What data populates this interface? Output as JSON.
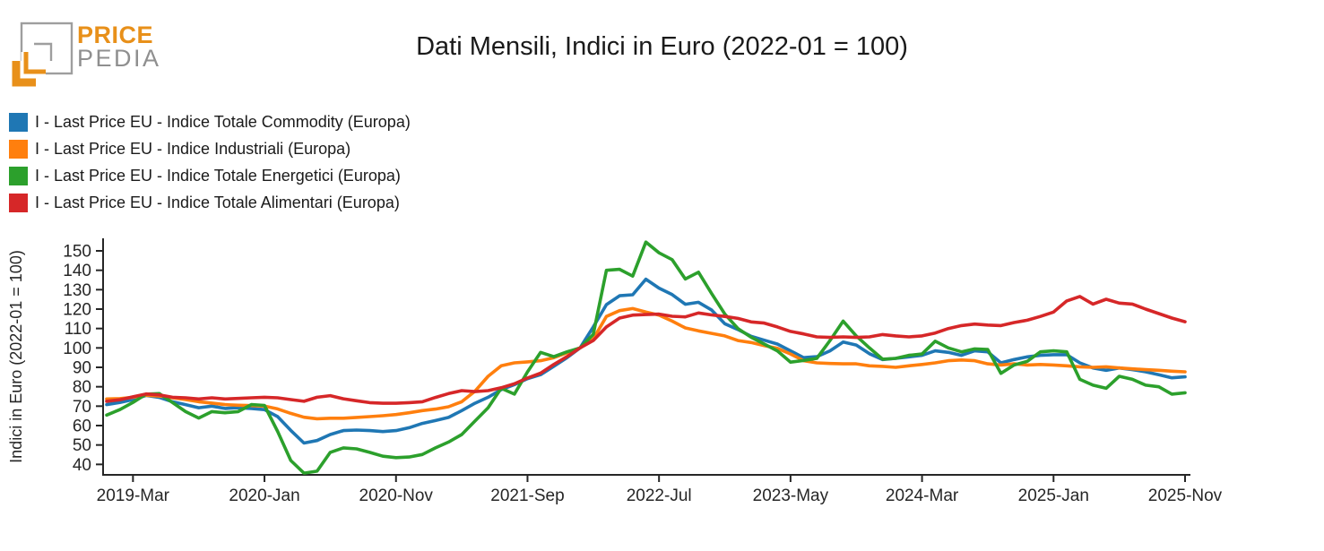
{
  "logo": {
    "brand_top": "PRICE",
    "brand_bottom": "PEDIA",
    "orange": "#e8901a",
    "gray": "#9e9e9e"
  },
  "title": "Dati Mensili, Indici in Euro (2022-01 = 100)",
  "legend": {
    "items": [
      {
        "label": "I - Last Price EU - Indice Totale Commodity (Europa)",
        "color": "#1f77b4"
      },
      {
        "label": "I - Last Price EU - Indice Industriali (Europa)",
        "color": "#ff7f0e"
      },
      {
        "label": "I - Last Price EU - Indice Totale Energetici (Europa)",
        "color": "#2ca02c"
      },
      {
        "label": "I - Last Price EU - Indice Totale Alimentari (Europa)",
        "color": "#d62728"
      }
    ]
  },
  "chart_data": {
    "type": "line",
    "title": "Dati Mensili, Indici in Euro (2022-01 = 100)",
    "xlabel": "",
    "ylabel": "Indici in Euro (2022-01 = 100)",
    "grid": false,
    "legend_position": "top-left",
    "ylim": [
      35,
      157
    ],
    "y_ticks": [
      40,
      50,
      60,
      70,
      80,
      90,
      100,
      110,
      120,
      130,
      140,
      150
    ],
    "x_tick_labels": [
      {
        "index": 2,
        "label": "2019-Mar"
      },
      {
        "index": 12,
        "label": "2020-Jan"
      },
      {
        "index": 22,
        "label": "2020-Nov"
      },
      {
        "index": 32,
        "label": "2021-Sep"
      },
      {
        "index": 42,
        "label": "2022-Jul"
      },
      {
        "index": 52,
        "label": "2023-May"
      },
      {
        "index": 62,
        "label": "2024-Mar"
      },
      {
        "index": 72,
        "label": "2025-Jan"
      },
      {
        "index": 82,
        "label": "2025-Nov"
      }
    ],
    "months": [
      "2019-01",
      "2019-02",
      "2019-03",
      "2019-04",
      "2019-05",
      "2019-06",
      "2019-07",
      "2019-08",
      "2019-09",
      "2019-10",
      "2019-11",
      "2019-12",
      "2020-01",
      "2020-02",
      "2020-03",
      "2020-04",
      "2020-05",
      "2020-06",
      "2020-07",
      "2020-08",
      "2020-09",
      "2020-10",
      "2020-11",
      "2020-12",
      "2021-01",
      "2021-02",
      "2021-03",
      "2021-04",
      "2021-05",
      "2021-06",
      "2021-07",
      "2021-08",
      "2021-09",
      "2021-10",
      "2021-11",
      "2021-12",
      "2022-01",
      "2022-02",
      "2022-03",
      "2022-04",
      "2022-05",
      "2022-06",
      "2022-07",
      "2022-08",
      "2022-09",
      "2022-10",
      "2022-11",
      "2022-12",
      "2023-01",
      "2023-02",
      "2023-03",
      "2023-04",
      "2023-05",
      "2023-06",
      "2023-07",
      "2023-08",
      "2023-09",
      "2023-10",
      "2023-11",
      "2023-12",
      "2024-01",
      "2024-02",
      "2024-03",
      "2024-04",
      "2024-05",
      "2024-06",
      "2024-07",
      "2024-08",
      "2024-09",
      "2024-10",
      "2024-11",
      "2024-12",
      "2025-01",
      "2025-02",
      "2025-03",
      "2025-04",
      "2025-05",
      "2025-06",
      "2025-07",
      "2025-08",
      "2025-09",
      "2025-10",
      "2025-11"
    ],
    "series": [
      {
        "key": "commodity",
        "name": "I - Last Price EU - Indice Totale Commodity (Europa)",
        "color": "#1f77b4",
        "values": [
          70.8,
          71.9,
          73.4,
          75.5,
          74.5,
          72.3,
          70.8,
          69.2,
          70.0,
          68.8,
          69.2,
          68.8,
          68.2,
          64.6,
          57.5,
          51.0,
          52.3,
          55.4,
          57.4,
          57.7,
          57.4,
          56.9,
          57.4,
          58.9,
          61.1,
          62.6,
          64.2,
          67.7,
          71.5,
          74.6,
          78.5,
          81.1,
          84.2,
          86.2,
          90.5,
          95.0,
          100.0,
          110.8,
          122.3,
          126.9,
          127.4,
          135.4,
          130.8,
          127.5,
          122.5,
          123.5,
          119.5,
          112.5,
          109.5,
          106.0,
          104.0,
          102.0,
          98.5,
          95.0,
          95.5,
          98.5,
          103.0,
          101.5,
          97.0,
          94.0,
          94.6,
          95.4,
          96.2,
          98.5,
          97.7,
          96.2,
          98.5,
          98.0,
          92.3,
          94.0,
          95.4,
          96.2,
          96.5,
          96.5,
          92.3,
          89.7,
          88.5,
          89.7,
          88.8,
          87.7,
          86.2,
          84.6,
          85.1
        ]
      },
      {
        "key": "industriali",
        "name": "I - Last Price EU - Indice Industriali (Europa)",
        "color": "#ff7f0e",
        "values": [
          73.7,
          73.9,
          74.6,
          75.6,
          75.2,
          74.3,
          73.4,
          72.3,
          71.6,
          70.8,
          70.5,
          70.3,
          70.0,
          68.6,
          66.3,
          64.3,
          63.5,
          63.8,
          63.8,
          64.2,
          64.6,
          65.1,
          65.7,
          66.6,
          67.7,
          68.5,
          69.7,
          72.3,
          77.7,
          85.4,
          90.8,
          92.3,
          92.8,
          93.4,
          95.0,
          97.5,
          100.0,
          104.6,
          116.2,
          119.2,
          120.3,
          118.5,
          116.9,
          113.8,
          110.3,
          108.8,
          107.5,
          106.2,
          103.8,
          102.8,
          101.2,
          99.8,
          96.9,
          93.4,
          92.3,
          92.0,
          91.8,
          91.8,
          90.8,
          90.5,
          90.0,
          90.8,
          91.5,
          92.3,
          93.4,
          93.8,
          93.4,
          91.8,
          91.2,
          91.8,
          91.2,
          91.5,
          91.2,
          90.8,
          90.3,
          90.0,
          90.3,
          89.7,
          89.2,
          88.8,
          88.5,
          88.0,
          87.7
        ]
      },
      {
        "key": "energetici",
        "name": "I - Last Price EU - Indice Totale Energetici (Europa)",
        "color": "#2ca02c",
        "values": [
          65.4,
          68.2,
          71.9,
          76.2,
          76.5,
          71.9,
          67.2,
          63.9,
          67.2,
          66.6,
          67.2,
          70.8,
          70.4,
          57.0,
          42.0,
          35.5,
          36.5,
          46.2,
          48.5,
          48.0,
          46.2,
          44.2,
          43.5,
          43.8,
          45.1,
          48.5,
          51.5,
          55.4,
          62.3,
          69.2,
          79.2,
          76.2,
          87.7,
          97.7,
          95.5,
          98.0,
          100.0,
          107.0,
          140.0,
          140.5,
          137.0,
          154.5,
          149.0,
          145.5,
          135.5,
          139.0,
          128.0,
          117.5,
          110.0,
          105.5,
          102.0,
          98.5,
          92.7,
          93.5,
          94.6,
          103.8,
          113.8,
          106.2,
          100.0,
          94.2,
          94.6,
          96.2,
          96.9,
          103.5,
          100.0,
          98.0,
          99.5,
          99.2,
          86.9,
          91.2,
          93.1,
          98.0,
          98.5,
          98.0,
          83.8,
          80.8,
          79.2,
          85.4,
          83.8,
          80.8,
          80.0,
          76.2,
          76.9
        ]
      },
      {
        "key": "alimentari",
        "name": "I - Last Price EU - Indice Totale Alimentari (Europa)",
        "color": "#d62728",
        "values": [
          72.5,
          73.3,
          74.8,
          76.3,
          75.8,
          74.6,
          74.3,
          73.7,
          74.3,
          73.7,
          74.0,
          74.3,
          74.6,
          74.3,
          73.4,
          72.5,
          74.6,
          75.4,
          73.8,
          72.8,
          71.8,
          71.5,
          71.5,
          71.8,
          72.3,
          74.5,
          76.5,
          78.0,
          77.5,
          78.0,
          79.5,
          81.5,
          84.5,
          87.0,
          91.5,
          95.5,
          100.0,
          103.8,
          110.8,
          115.4,
          116.9,
          117.2,
          117.4,
          116.3,
          116.0,
          118.0,
          117.0,
          116.2,
          115.2,
          113.4,
          112.8,
          110.8,
          108.5,
          107.2,
          105.7,
          105.4,
          105.7,
          105.4,
          105.7,
          106.9,
          106.2,
          105.7,
          106.2,
          107.7,
          110.0,
          111.5,
          112.3,
          111.8,
          111.5,
          113.1,
          114.3,
          116.2,
          118.5,
          124.2,
          126.5,
          122.6,
          125.1,
          123.1,
          122.6,
          120.0,
          117.7,
          115.4,
          113.5
        ]
      }
    ]
  }
}
